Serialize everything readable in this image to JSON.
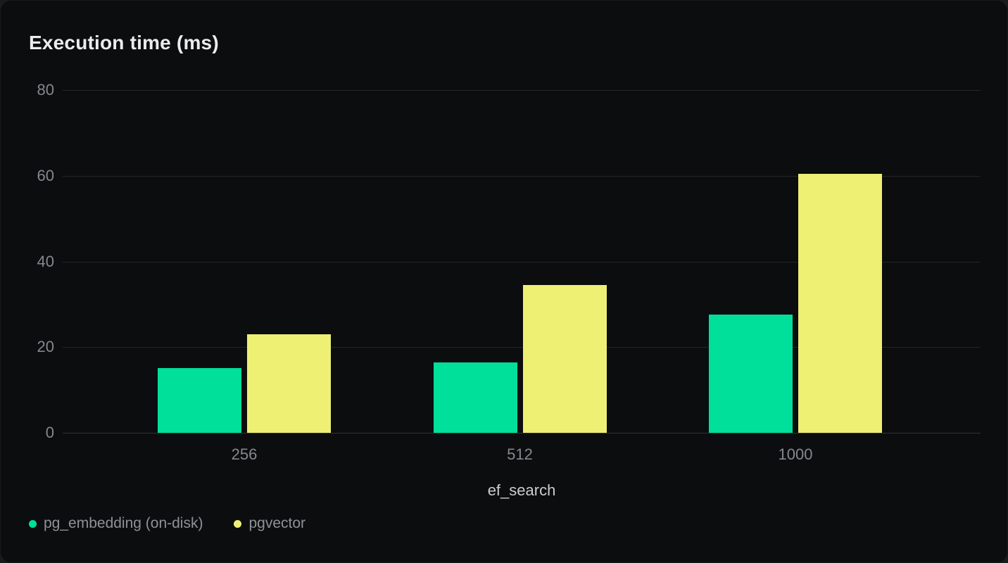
{
  "theme": {
    "page-bg": "#1a1b1d",
    "card-bg": "#0c0d0e",
    "grid-color": "#232527",
    "baseline-color": "#2f3234",
    "title-color": "#ebecee",
    "tick-color": "#85888c",
    "xlabel-color": "#caccce",
    "legend-text-color": "#8e9196"
  },
  "chart_data": {
    "type": "bar",
    "title": "Execution time (ms)",
    "xlabel": "ef_search",
    "ylabel": "",
    "categories": [
      "256",
      "512",
      "1000"
    ],
    "series": [
      {
        "name": "pg_embedding (on-disk)",
        "slug": "pg-embedding-on-disk",
        "color": "#00e09a",
        "values": [
          15.1,
          16.4,
          27.6
        ]
      },
      {
        "name": "pgvector",
        "slug": "pgvector",
        "color": "#eef073",
        "values": [
          23.0,
          34.5,
          60.4
        ]
      }
    ],
    "y_ticks": [
      0,
      20,
      40,
      60,
      80
    ],
    "ylim": [
      0,
      80
    ],
    "grid": true,
    "legend_position": "bottom-left"
  }
}
